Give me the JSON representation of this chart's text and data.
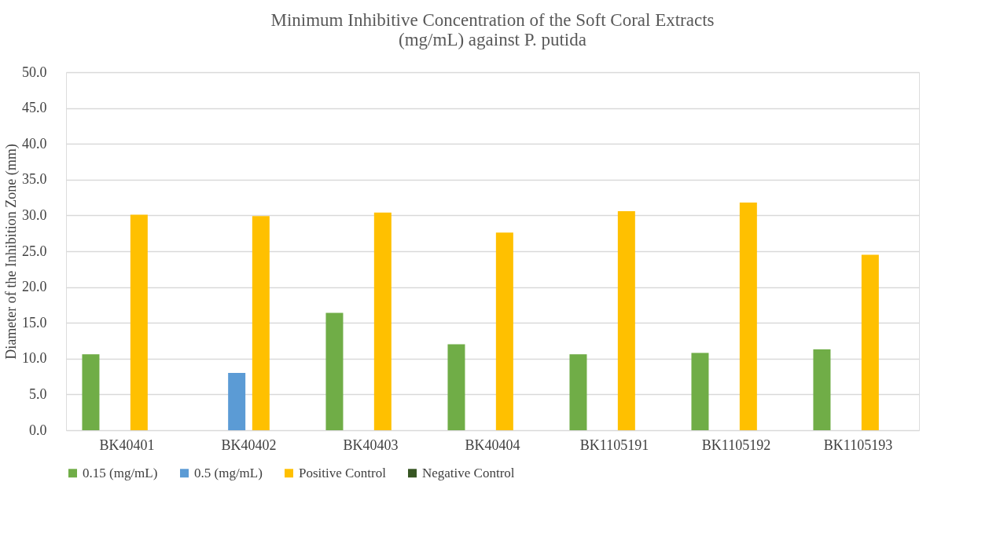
{
  "chart_data": {
    "type": "bar",
    "title": "Minimum Inhibitive Concentration of the Soft Coral Extracts (mg/mL)  against P. putida",
    "ylabel": "Diameter of the Inhibition Zone (mm)",
    "categories": [
      "BK40401",
      "BK40402",
      "BK40403",
      "BK40404",
      "BK1105191",
      "BK1105192",
      "BK1105193"
    ],
    "series": [
      {
        "name": "0.15 (mg/mL)",
        "color": "#70ad47",
        "values": [
          10.6,
          null,
          16.4,
          12.0,
          10.6,
          10.8,
          11.3
        ]
      },
      {
        "name": "0.5 (mg/mL)",
        "color": "#5b9bd5",
        "values": [
          null,
          8.0,
          null,
          null,
          null,
          null,
          null
        ]
      },
      {
        "name": "Positive Control",
        "color": "#ffc000",
        "values": [
          30.1,
          29.9,
          30.4,
          27.6,
          30.6,
          31.8,
          24.5
        ]
      },
      {
        "name": "Negative Control",
        "color": "#375623",
        "values": [
          0,
          0,
          0,
          0,
          0,
          0,
          0
        ]
      }
    ],
    "ylim": [
      0,
      50
    ],
    "yticks": [
      {
        "value": 0,
        "label": "0.0"
      },
      {
        "value": 5,
        "label": "5.0"
      },
      {
        "value": 10,
        "label": "10.0"
      },
      {
        "value": 15,
        "label": "15.0"
      },
      {
        "value": 20,
        "label": "20.0"
      },
      {
        "value": 25,
        "label": "25.0"
      },
      {
        "value": 30,
        "label": "30.0"
      },
      {
        "value": 35,
        "label": "35.0"
      },
      {
        "value": 40,
        "label": "40.0"
      },
      {
        "value": 45,
        "label": "45.0"
      },
      {
        "value": 50,
        "label": "50.0"
      }
    ],
    "grid": "y",
    "legend": "bottom"
  }
}
